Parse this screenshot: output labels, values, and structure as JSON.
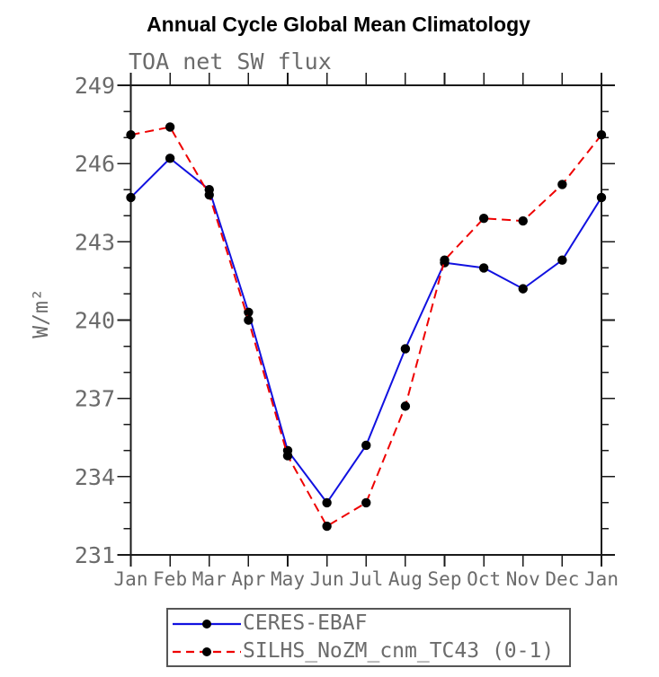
{
  "title": "Annual Cycle Global Mean Climatology",
  "subtitle": "TOA net SW flux",
  "ylabel": "W/m²",
  "colors": {
    "ceres_line": "#1111e0",
    "silhs_line": "#ee0000",
    "marker": "#000000",
    "axis": "#1a1a1a",
    "label_text": "#6b6b6b",
    "title_text": "#000000",
    "legend_border": "#565656"
  },
  "chart_data": {
    "type": "line",
    "x": [
      "Jan",
      "Feb",
      "Mar",
      "Apr",
      "May",
      "Jun",
      "Jul",
      "Aug",
      "Sep",
      "Oct",
      "Nov",
      "Dec",
      "Jan"
    ],
    "xlabel": "",
    "ylabel": "W/m²",
    "ylim": [
      231,
      249
    ],
    "yticks_major": [
      231,
      234,
      237,
      240,
      243,
      246,
      249
    ],
    "ytick_minor_step": 1,
    "grid": false,
    "legend_position": "bottom",
    "series": [
      {
        "name": "CERES-EBAF",
        "style": "solid",
        "color": "#1111e0",
        "marker": "circle",
        "marker_color": "#000000",
        "values": [
          244.7,
          246.2,
          245.0,
          240.3,
          235.0,
          233.0,
          235.2,
          238.9,
          242.2,
          242.0,
          241.2,
          242.3,
          244.7
        ]
      },
      {
        "name": "SILHS_NoZM_cnm_TC43 (0-1)",
        "style": "dashed",
        "color": "#ee0000",
        "marker": "circle",
        "marker_color": "#000000",
        "values": [
          247.1,
          247.4,
          244.8,
          240.0,
          234.8,
          232.1,
          233.0,
          236.7,
          242.3,
          243.9,
          243.8,
          245.2,
          247.1
        ]
      }
    ]
  }
}
